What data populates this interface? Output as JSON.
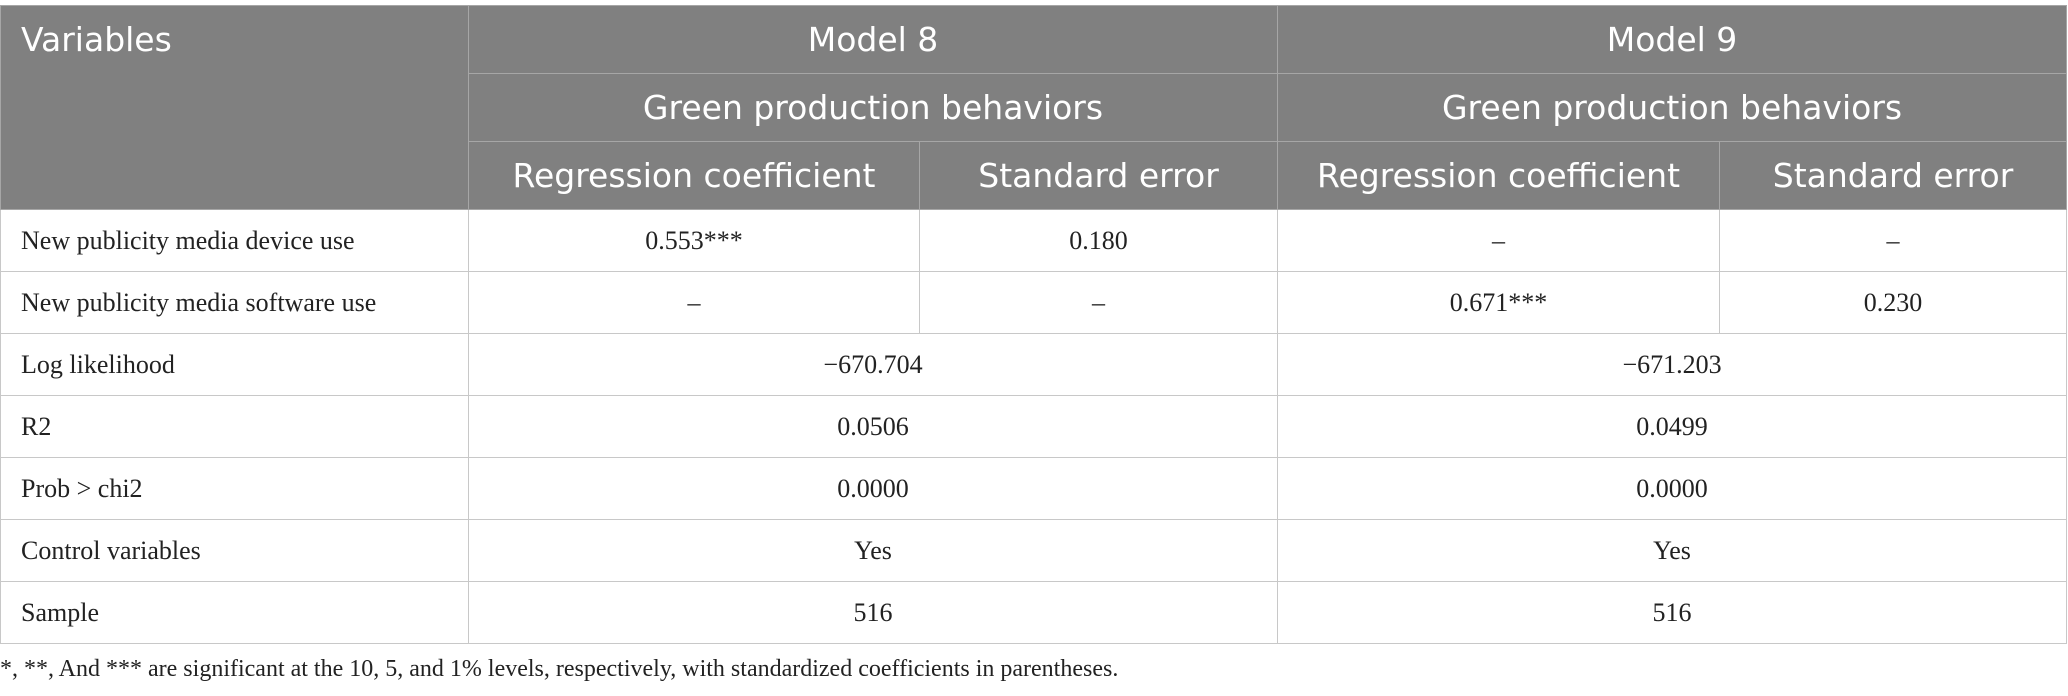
{
  "table": {
    "header": {
      "variables": "Variables",
      "models": [
        "Model 8",
        "Model 9"
      ],
      "dependent": [
        "Green production behaviors",
        "Green production behaviors"
      ],
      "columns": [
        "Regression coefficient",
        "Standard error",
        "Regression coefficient",
        "Standard error"
      ]
    },
    "rows": [
      [
        "New publicity media device use",
        "0.553***",
        "0.180",
        "–",
        "–"
      ],
      [
        "New publicity media software use",
        "–",
        "–",
        "0.671***",
        "0.230"
      ],
      [
        "Log likelihood",
        "−670.704",
        "−671.203"
      ],
      [
        "R2",
        "0.0506",
        "0.0499"
      ],
      [
        "Prob > chi2",
        "0.0000",
        "0.0000"
      ],
      [
        "Control variables",
        "Yes",
        "Yes"
      ],
      [
        "Sample",
        "516",
        "516"
      ]
    ]
  },
  "footnote": "*, **, And *** are significant at the 10, 5, and 1% levels, respectively, with standardized coefficients in parentheses."
}
